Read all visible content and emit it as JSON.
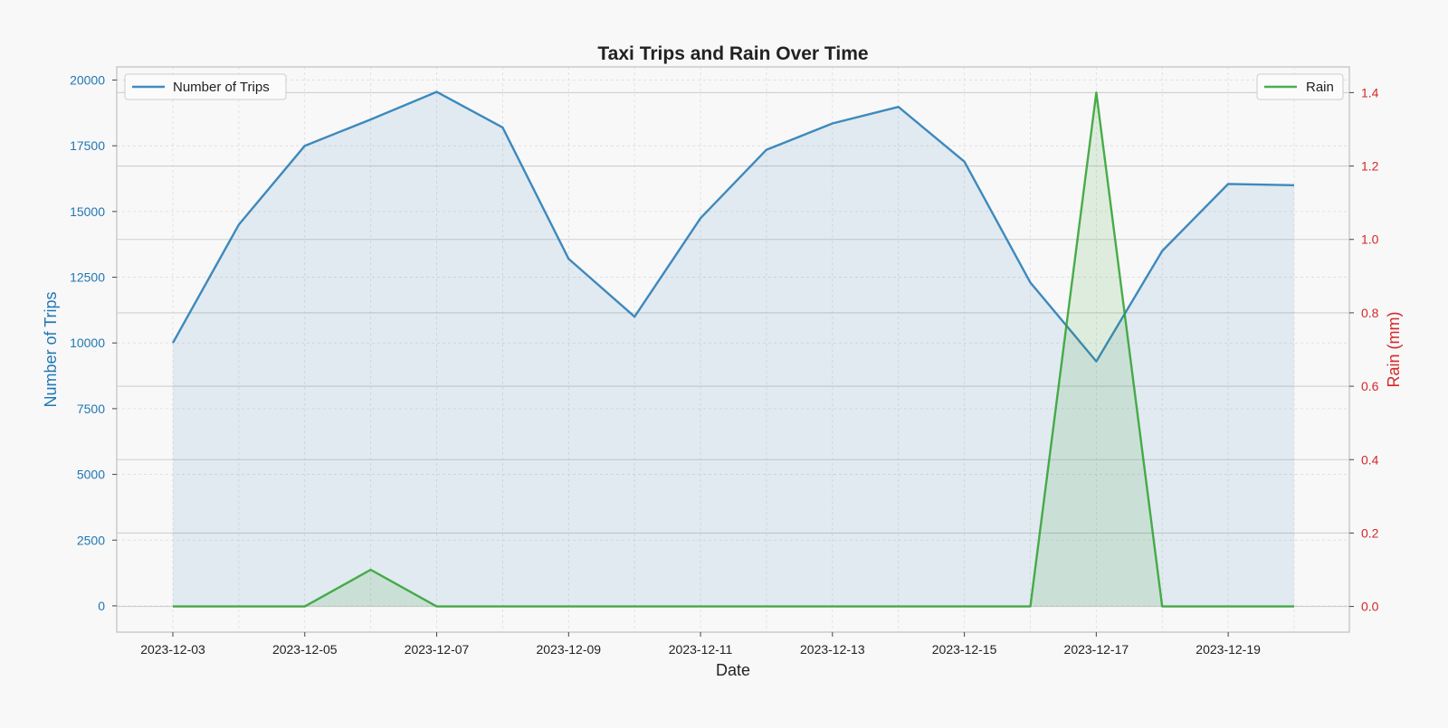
{
  "chart_data": {
    "type": "line",
    "title": "Taxi Trips and Rain Over Time",
    "xlabel": "Date",
    "ylabel": "Number of Trips",
    "y2label": "Rain (mm)",
    "x": [
      "2023-12-03",
      "2023-12-04",
      "2023-12-05",
      "2023-12-06",
      "2023-12-07",
      "2023-12-08",
      "2023-12-09",
      "2023-12-10",
      "2023-12-11",
      "2023-12-12",
      "2023-12-13",
      "2023-12-14",
      "2023-12-15",
      "2023-12-16",
      "2023-12-17",
      "2023-12-18",
      "2023-12-19",
      "2023-12-20"
    ],
    "x_ticks": [
      "2023-12-03",
      "2023-12-05",
      "2023-12-07",
      "2023-12-09",
      "2023-12-11",
      "2023-12-13",
      "2023-12-15",
      "2023-12-17",
      "2023-12-19"
    ],
    "series": [
      {
        "name": "Number of Trips",
        "axis": "left",
        "color": "#1f77b4",
        "fill": true,
        "values": [
          10000,
          14500,
          17500,
          18500,
          19550,
          18200,
          13200,
          11000,
          14750,
          17350,
          18350,
          18980,
          16900,
          12300,
          9300,
          13500,
          16050,
          16000
        ]
      },
      {
        "name": "Rain",
        "axis": "right",
        "color": "#2ca02c",
        "fill": true,
        "values": [
          0,
          0,
          0,
          0.1,
          0,
          0,
          0,
          0,
          0,
          0,
          0,
          0,
          0,
          0,
          1.4,
          0,
          0,
          0
        ]
      }
    ],
    "ylim": [
      -1000,
      20500
    ],
    "y_ticks": [
      0,
      2500,
      5000,
      7500,
      10000,
      12500,
      15000,
      17500,
      20000
    ],
    "y2lim": [
      -0.07,
      1.47
    ],
    "y2_ticks": [
      0.0,
      0.2,
      0.4,
      0.6,
      0.8,
      1.0,
      1.2,
      1.4
    ],
    "left_axis_color": "#1f77b4",
    "right_axis_color": "#d62728",
    "grid": true,
    "legend_left": "top-left",
    "legend_right": "top-right"
  }
}
